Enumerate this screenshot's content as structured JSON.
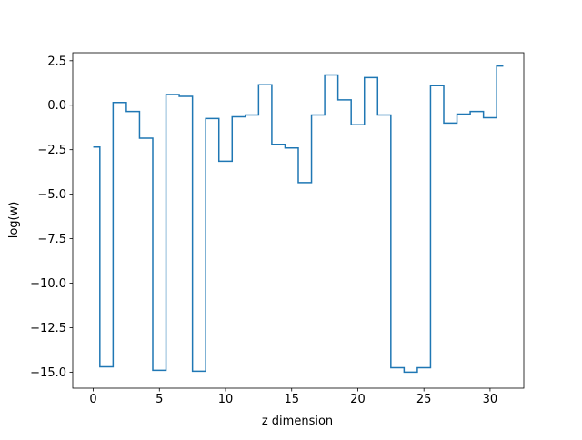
{
  "chart_data": {
    "type": "line",
    "drawstyle": "steps-mid",
    "title": "",
    "xlabel": "z dimension",
    "ylabel": "log(w)",
    "xlim": [
      -1.55,
      32.55
    ],
    "ylim": [
      -15.9,
      2.95
    ],
    "xticks": [
      0,
      5,
      10,
      15,
      20,
      25,
      30
    ],
    "xtick_labels": [
      "0",
      "5",
      "10",
      "15",
      "20",
      "25",
      "30"
    ],
    "yticks": [
      2.5,
      0.0,
      -2.5,
      -5.0,
      -7.5,
      -10.0,
      -12.5,
      -15.0
    ],
    "ytick_labels": [
      "2.5",
      "0.0",
      "−2.5",
      "−5.0",
      "−7.5",
      "−10.0",
      "−12.5",
      "−15.0"
    ],
    "grid": false,
    "legend": false,
    "series": [
      {
        "color": "#1f77b4",
        "x": [
          0,
          1,
          2,
          3,
          4,
          5,
          6,
          7,
          8,
          9,
          10,
          11,
          12,
          13,
          14,
          15,
          16,
          17,
          18,
          19,
          20,
          21,
          22,
          23,
          24,
          25,
          26,
          27,
          28,
          29,
          30,
          31
        ],
        "values": [
          -2.35,
          -14.7,
          0.15,
          -0.35,
          -1.85,
          -14.9,
          0.6,
          0.5,
          -14.95,
          -0.75,
          -3.15,
          -0.65,
          -0.55,
          1.15,
          -2.2,
          -2.4,
          -4.35,
          -0.55,
          1.7,
          0.3,
          -1.1,
          1.55,
          -0.55,
          -14.75,
          -15.0,
          -14.75,
          1.1,
          -1.0,
          -0.5,
          -0.35,
          -0.7,
          2.2
        ]
      }
    ]
  }
}
